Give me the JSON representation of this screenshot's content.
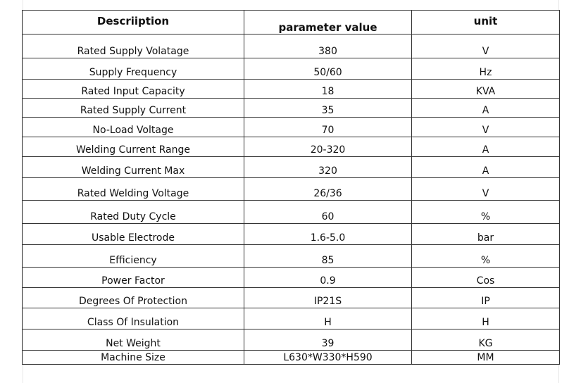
{
  "table": {
    "headers": [
      "Descriiption",
      "parameter value",
      "unit"
    ],
    "rows": [
      [
        "Rated Supply Volatage",
        "380",
        "V"
      ],
      [
        "Supply Frequency",
        "50/60",
        "Hz"
      ],
      [
        "Rated Input Capacity",
        "18",
        "KVA"
      ],
      [
        "Rated Supply Current",
        "35",
        "A"
      ],
      [
        "No-Load Voltage",
        "70",
        "V"
      ],
      [
        "Welding Current Range",
        "20-320",
        "A"
      ],
      [
        "Welding Current Max",
        "320",
        "A"
      ],
      [
        "Rated Welding Voltage",
        "26/36",
        "V"
      ],
      [
        "Rated Duty Cycle",
        "60",
        "%"
      ],
      [
        "Usable Electrode",
        "1.6-5.0",
        "bar"
      ],
      [
        "Efficiency",
        "85",
        "%"
      ],
      [
        "Power Factor",
        "0.9",
        "Cos"
      ],
      [
        "Degrees Of Protection",
        "IP21S",
        "IP"
      ],
      [
        "Class Of Insulation",
        "H",
        "H"
      ],
      [
        "Net Weight",
        "39",
        "KG"
      ],
      [
        "Machine Size",
        "L630*W330*H590",
        "MM"
      ]
    ]
  }
}
